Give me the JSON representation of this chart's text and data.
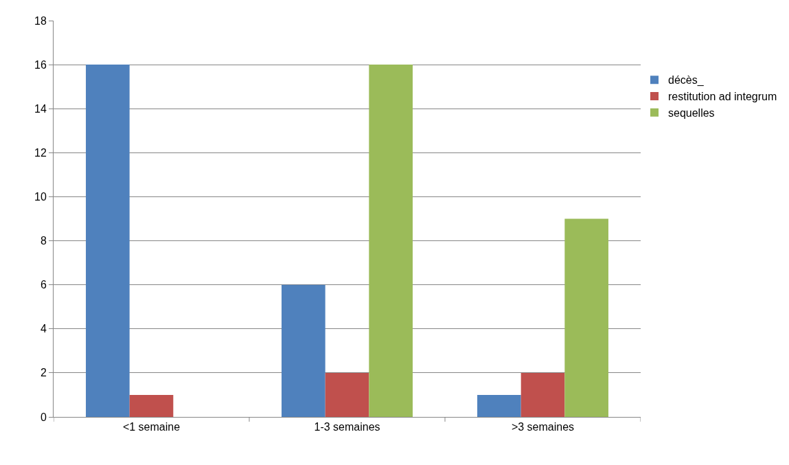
{
  "chart_data": {
    "type": "bar",
    "categories": [
      "<1 semaine",
      "1-3 semaines",
      ">3 semaines"
    ],
    "series": [
      {
        "name": "décès_",
        "color": "#4f81bd",
        "values": [
          16,
          6,
          1
        ]
      },
      {
        "name": "restitution ad integrum",
        "color": "#c0504d",
        "values": [
          1,
          2,
          2
        ]
      },
      {
        "name": "sequelles",
        "color": "#9bbb59",
        "values": [
          0,
          16,
          9
        ]
      }
    ],
    "ylim": [
      0,
      18
    ],
    "yticks": [
      0,
      2,
      4,
      6,
      8,
      10,
      12,
      14,
      16,
      18
    ],
    "grid": "y",
    "legend": "right"
  }
}
